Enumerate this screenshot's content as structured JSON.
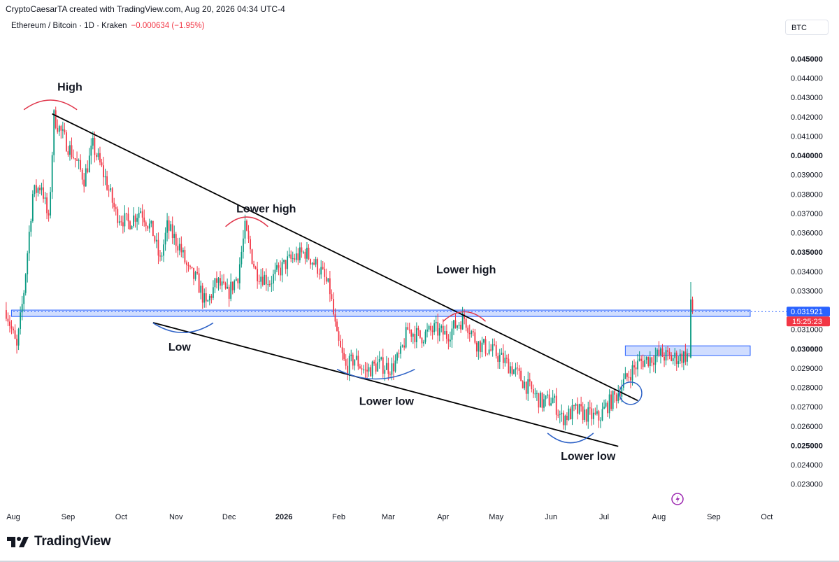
{
  "header": {
    "credit": "CryptoCaesarTA created with TradingView.com, Aug 20, 2026 04:34 UTC-4",
    "symbol": "Ethereum / Bitcoin · 1D · Kraken",
    "change": "−0.000634 (−1.95%)",
    "currency": "BTC"
  },
  "footer": {
    "brand": "TradingView"
  },
  "colors": {
    "up": "#089981",
    "down": "#f23645",
    "zone": "#2962ff",
    "line": "#000000",
    "arc_high": "#e0354a",
    "arc_low": "#2f63c7",
    "price_tag": "#2962ff",
    "timer_tag": "#f23645"
  },
  "chart_data": {
    "type": "candlestick",
    "symbol": "Ethereum / Bitcoin",
    "interval": "1D",
    "exchange": "Kraken",
    "y_ticks": [
      "0.045000",
      "0.044000",
      "0.043000",
      "0.042000",
      "0.041000",
      "0.040000",
      "0.039000",
      "0.038000",
      "0.037000",
      "0.036000",
      "0.035000",
      "0.034000",
      "0.033000",
      "0.032000",
      "0.031000",
      "0.030000",
      "0.029000",
      "0.028000",
      "0.027000",
      "0.026000",
      "0.025000",
      "0.024000",
      "0.023000"
    ],
    "y_bold": [
      "0.045000",
      "0.040000",
      "0.035000",
      "0.030000",
      "0.025000"
    ],
    "ylim": [
      0.0225,
      0.0462
    ],
    "x_ticks": [
      "Aug",
      "Sep",
      "Oct",
      "Nov",
      "Dec",
      "2026",
      "Feb",
      "Mar",
      "Apr",
      "May",
      "Jun",
      "Jul",
      "Aug",
      "Sep",
      "Oct"
    ],
    "x_bold": [
      "2026"
    ],
    "last_price": "0.031921",
    "countdown": "15:25:23",
    "price_path": [
      [
        "2025-07-28",
        0.032
      ],
      [
        "2025-08-03",
        0.03
      ],
      [
        "2025-08-07",
        0.033
      ],
      [
        "2025-08-12",
        0.038
      ],
      [
        "2025-08-17",
        0.0385
      ],
      [
        "2025-08-21",
        0.0365
      ],
      [
        "2025-08-24",
        0.042
      ],
      [
        "2025-08-29",
        0.041
      ],
      [
        "2025-09-05",
        0.0398
      ],
      [
        "2025-09-10",
        0.0388
      ],
      [
        "2025-09-15",
        0.0405
      ],
      [
        "2025-09-22",
        0.0388
      ],
      [
        "2025-09-28",
        0.037
      ],
      [
        "2025-10-05",
        0.0365
      ],
      [
        "2025-10-12",
        0.0372
      ],
      [
        "2025-10-19",
        0.036
      ],
      [
        "2025-10-23",
        0.0345
      ],
      [
        "2025-10-27",
        0.0363
      ],
      [
        "2025-11-03",
        0.0353
      ],
      [
        "2025-11-08",
        0.034
      ],
      [
        "2025-11-13",
        0.0335
      ],
      [
        "2025-11-18",
        0.0322
      ],
      [
        "2025-11-24",
        0.0335
      ],
      [
        "2025-11-30",
        0.0328
      ],
      [
        "2025-12-06",
        0.0338
      ],
      [
        "2025-12-10",
        0.0362
      ],
      [
        "2025-12-16",
        0.034
      ],
      [
        "2025-12-24",
        0.0335
      ],
      [
        "2026-01-03",
        0.0345
      ],
      [
        "2026-01-13",
        0.035
      ],
      [
        "2026-01-22",
        0.034
      ],
      [
        "2026-01-27",
        0.033
      ],
      [
        "2026-01-31",
        0.0305
      ],
      [
        "2026-02-05",
        0.029
      ],
      [
        "2026-02-10",
        0.0295
      ],
      [
        "2026-02-16",
        0.0288
      ],
      [
        "2026-02-23",
        0.0292
      ],
      [
        "2026-03-03",
        0.029
      ],
      [
        "2026-03-08",
        0.0297
      ],
      [
        "2026-03-12",
        0.031
      ],
      [
        "2026-03-19",
        0.0306
      ],
      [
        "2026-03-27",
        0.031
      ],
      [
        "2026-04-03",
        0.0307
      ],
      [
        "2026-04-08",
        0.0312
      ],
      [
        "2026-04-13",
        0.0316
      ],
      [
        "2026-04-20",
        0.0303
      ],
      [
        "2026-04-30",
        0.0298
      ],
      [
        "2026-05-10",
        0.029
      ],
      [
        "2026-05-19",
        0.028
      ],
      [
        "2026-05-27",
        0.0272
      ],
      [
        "2026-06-02",
        0.0274
      ],
      [
        "2026-06-07",
        0.0264
      ],
      [
        "2026-06-15",
        0.0268
      ],
      [
        "2026-06-21",
        0.0266
      ],
      [
        "2026-06-28",
        0.0264
      ],
      [
        "2026-07-02",
        0.027
      ],
      [
        "2026-07-08",
        0.0276
      ],
      [
        "2026-07-11",
        0.0281
      ],
      [
        "2026-07-16",
        0.0288
      ],
      [
        "2026-07-21",
        0.0293
      ],
      [
        "2026-07-27",
        0.0295
      ],
      [
        "2026-08-02",
        0.0297
      ],
      [
        "2026-08-08",
        0.0295
      ],
      [
        "2026-08-14",
        0.0296
      ],
      [
        "2026-08-18",
        0.0297
      ]
    ],
    "final_candle": {
      "date": "2026-08-19",
      "open": 0.02955,
      "high": 0.03345,
      "low": 0.0295,
      "close": 0.03255
    },
    "last_candle": {
      "date": "2026-08-20",
      "open": 0.03255,
      "high": 0.0327,
      "low": 0.0318,
      "close": 0.031921
    },
    "trendlines": [
      {
        "name": "descending resistance",
        "from": [
          "2025-08-23",
          0.04215
        ],
        "to": [
          "2026-07-20",
          0.02732
        ]
      },
      {
        "name": "descending support",
        "from": [
          "2025-10-19",
          0.03135
        ],
        "to": [
          "2026-07-09",
          0.02495
        ]
      }
    ],
    "zones": [
      {
        "name": "horizontal level",
        "from": "2025-07-31",
        "to": "2026-10-01",
        "low": 0.03167,
        "high": 0.032
      },
      {
        "name": "resistance box",
        "from": "2026-07-13",
        "to": "2026-10-01",
        "low": 0.02965,
        "high": 0.03015
      }
    ],
    "annotations": [
      {
        "text": "High",
        "x": "2025-09-02",
        "y": 0.04335
      },
      {
        "text": "Lower high",
        "x": "2025-12-22",
        "y": 0.03705
      },
      {
        "text": "Lower high",
        "x": "2026-04-14",
        "y": 0.0339
      },
      {
        "text": "Low",
        "x": "2025-11-03",
        "y": 0.0299
      },
      {
        "text": "Lower low",
        "x": "2026-02-28",
        "y": 0.0271
      },
      {
        "text": "Lower low",
        "x": "2026-06-22",
        "y": 0.02425
      }
    ],
    "arcs": [
      {
        "kind": "high",
        "x": "2025-08-22",
        "y": 0.0428,
        "span_days": 30
      },
      {
        "kind": "high",
        "x": "2025-12-11",
        "y": 0.03675,
        "span_days": 24
      },
      {
        "kind": "high",
        "x": "2026-04-13",
        "y": 0.03185,
        "span_days": 24
      },
      {
        "kind": "low",
        "x": "2025-11-05",
        "y": 0.0309,
        "span_days": 34
      },
      {
        "kind": "low",
        "x": "2026-02-22",
        "y": 0.0285,
        "span_days": 44
      },
      {
        "kind": "low",
        "x": "2026-06-12",
        "y": 0.0252,
        "span_days": 26
      }
    ],
    "circle": {
      "x": "2026-07-16",
      "y": 0.0277
    }
  }
}
